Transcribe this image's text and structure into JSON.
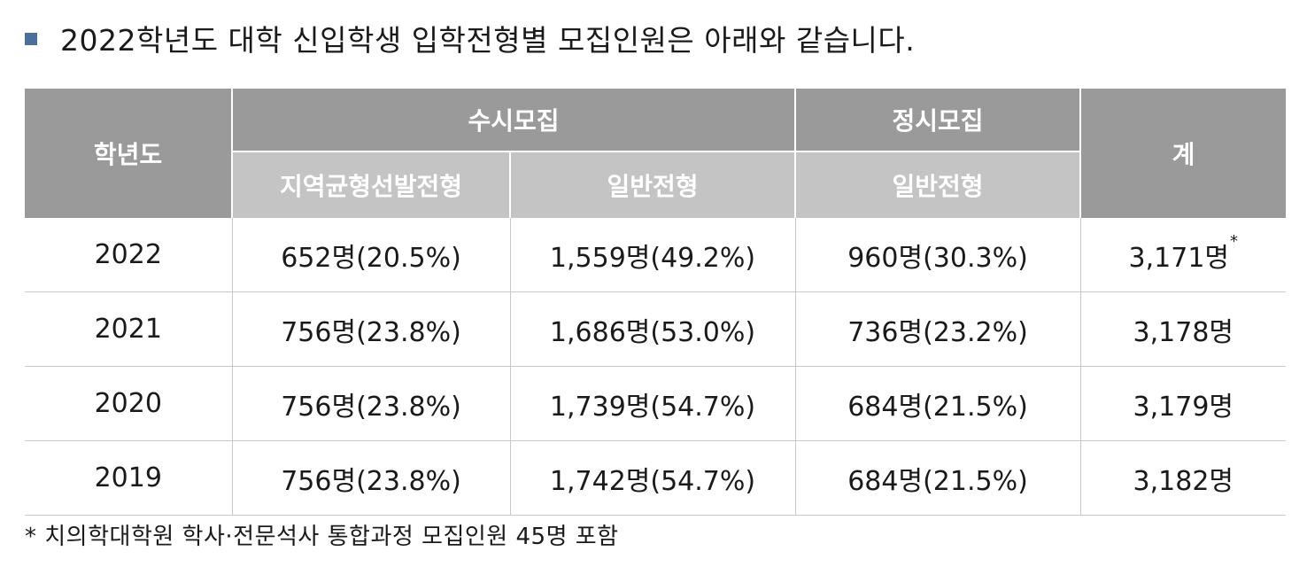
{
  "title": "2022학년도 대학 신입학생 입학전형별 모집인원은 아래와 같습니다.",
  "colors": {
    "bullet": "#4a6f9a",
    "header_dark": "#9a9a9a",
    "header_light": "#c4c4c4"
  },
  "table": {
    "headers": {
      "year": "학년도",
      "susi": "수시모집",
      "jeongsi": "정시모집",
      "total": "계",
      "susi_regional": "지역균형선발전형",
      "susi_general": "일반전형",
      "jeongsi_general": "일반전형"
    },
    "rows": [
      {
        "year": "2022",
        "regional": "652명(20.5%)",
        "susi_general": "1,559명(49.2%)",
        "jeongsi_general": "960명(30.3%)",
        "total": "3,171명",
        "total_mark": "*"
      },
      {
        "year": "2021",
        "regional": "756명(23.8%)",
        "susi_general": "1,686명(53.0%)",
        "jeongsi_general": "736명(23.2%)",
        "total": "3,178명",
        "total_mark": ""
      },
      {
        "year": "2020",
        "regional": "756명(23.8%)",
        "susi_general": "1,739명(54.7%)",
        "jeongsi_general": "684명(21.5%)",
        "total": "3,179명",
        "total_mark": ""
      },
      {
        "year": "2019",
        "regional": "756명(23.8%)",
        "susi_general": "1,742명(54.7%)",
        "jeongsi_general": "684명(21.5%)",
        "total": "3,182명",
        "total_mark": ""
      }
    ]
  },
  "footnote": "* 치의학대학원 학사·전문석사 통합과정 모집인원 45명 포함"
}
